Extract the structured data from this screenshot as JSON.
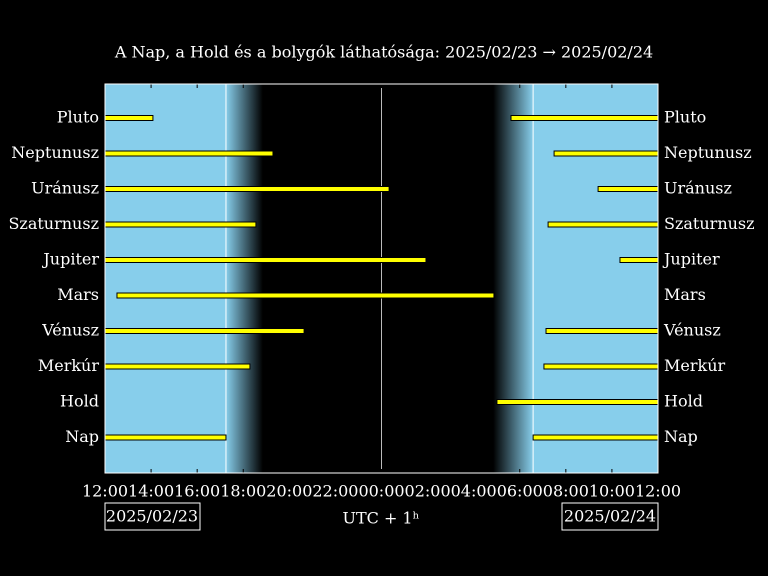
{
  "chart_data": {
    "type": "visibility",
    "title": "A Nap, a Hold és a bolygók láthatósága: 2025/02/23 → 2025/02/24",
    "x_label": "UTC + 1ʰ",
    "start_date": "2025/02/23",
    "end_date": "2025/02/24",
    "xlim": [
      0,
      24
    ],
    "xticks": [
      {
        "value": 0,
        "label": "12:00"
      },
      {
        "value": 2,
        "label": "14:00"
      },
      {
        "value": 4,
        "label": "16:00"
      },
      {
        "value": 6,
        "label": "18:00"
      },
      {
        "value": 8,
        "label": "20:00"
      },
      {
        "value": 10,
        "label": "22:00"
      },
      {
        "value": 12,
        "label": "00:00"
      },
      {
        "value": 14,
        "label": "02:00"
      },
      {
        "value": 16,
        "label": "04:00"
      },
      {
        "value": 18,
        "label": "06:00"
      },
      {
        "value": 20,
        "label": "08:00"
      },
      {
        "value": 22,
        "label": "10:00"
      },
      {
        "value": 24,
        "label": "12:00"
      }
    ],
    "sunset": 5.25,
    "dusk_end": 6.85,
    "dawn_start": 16.85,
    "sunrise": 18.58,
    "midnight": 12,
    "day_color": "#87ceeb",
    "bar_color": "#ffff00",
    "categories": [
      "Pluto",
      "Neptunusz",
      "Uránusz",
      "Szaturnusz",
      "Jupiter",
      "Mars",
      "Vénusz",
      "Merkúr",
      "Hold",
      "Nap"
    ],
    "segments": [
      [
        [
          0,
          2.08
        ],
        [
          17.62,
          24
        ]
      ],
      [
        [
          0,
          7.29
        ],
        [
          19.49,
          24
        ]
      ],
      [
        [
          0,
          12.33
        ],
        [
          21.4,
          24
        ]
      ],
      [
        [
          0,
          6.55
        ],
        [
          19.23,
          24
        ]
      ],
      [
        [
          0,
          13.93
        ],
        [
          22.35,
          24
        ]
      ],
      [
        [
          0.52,
          16.88
        ]
      ],
      [
        [
          0,
          8.64
        ],
        [
          19.14,
          24
        ]
      ],
      [
        [
          0,
          6.29
        ],
        [
          19.05,
          24
        ]
      ],
      [
        [
          17.01,
          24
        ]
      ],
      [
        [
          0,
          5.25
        ],
        [
          18.58,
          24
        ]
      ]
    ]
  }
}
